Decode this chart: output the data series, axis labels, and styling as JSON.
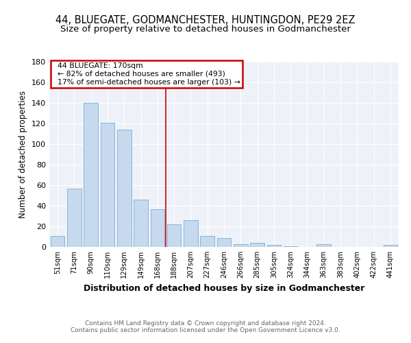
{
  "title": "44, BLUEGATE, GODMANCHESTER, HUNTINGDON, PE29 2EZ",
  "subtitle": "Size of property relative to detached houses in Godmanchester",
  "xlabel": "Distribution of detached houses by size in Godmanchester",
  "ylabel": "Number of detached properties",
  "categories": [
    "51sqm",
    "71sqm",
    "90sqm",
    "110sqm",
    "129sqm",
    "149sqm",
    "168sqm",
    "188sqm",
    "207sqm",
    "227sqm",
    "246sqm",
    "266sqm",
    "285sqm",
    "305sqm",
    "324sqm",
    "344sqm",
    "363sqm",
    "383sqm",
    "402sqm",
    "422sqm",
    "441sqm"
  ],
  "values": [
    11,
    57,
    140,
    121,
    114,
    46,
    37,
    22,
    26,
    11,
    9,
    3,
    4,
    2,
    1,
    0,
    3,
    0,
    0,
    0,
    2
  ],
  "bar_color": "#c6d9ee",
  "bar_edge_color": "#7aadd4",
  "vline_color": "#cc0000",
  "annotation_title": "44 BLUEGATE: 170sqm",
  "annotation_line1": "← 82% of detached houses are smaller (493)",
  "annotation_line2": "17% of semi-detached houses are larger (103) →",
  "annotation_box_color": "#cc0000",
  "ylim": [
    0,
    180
  ],
  "yticks": [
    0,
    20,
    40,
    60,
    80,
    100,
    120,
    140,
    160,
    180
  ],
  "footer1": "Contains HM Land Registry data © Crown copyright and database right 2024.",
  "footer2": "Contains public sector information licensed under the Open Government Licence v3.0.",
  "bg_color": "#eef2f8",
  "title_fontsize": 10.5,
  "subtitle_fontsize": 9.5
}
